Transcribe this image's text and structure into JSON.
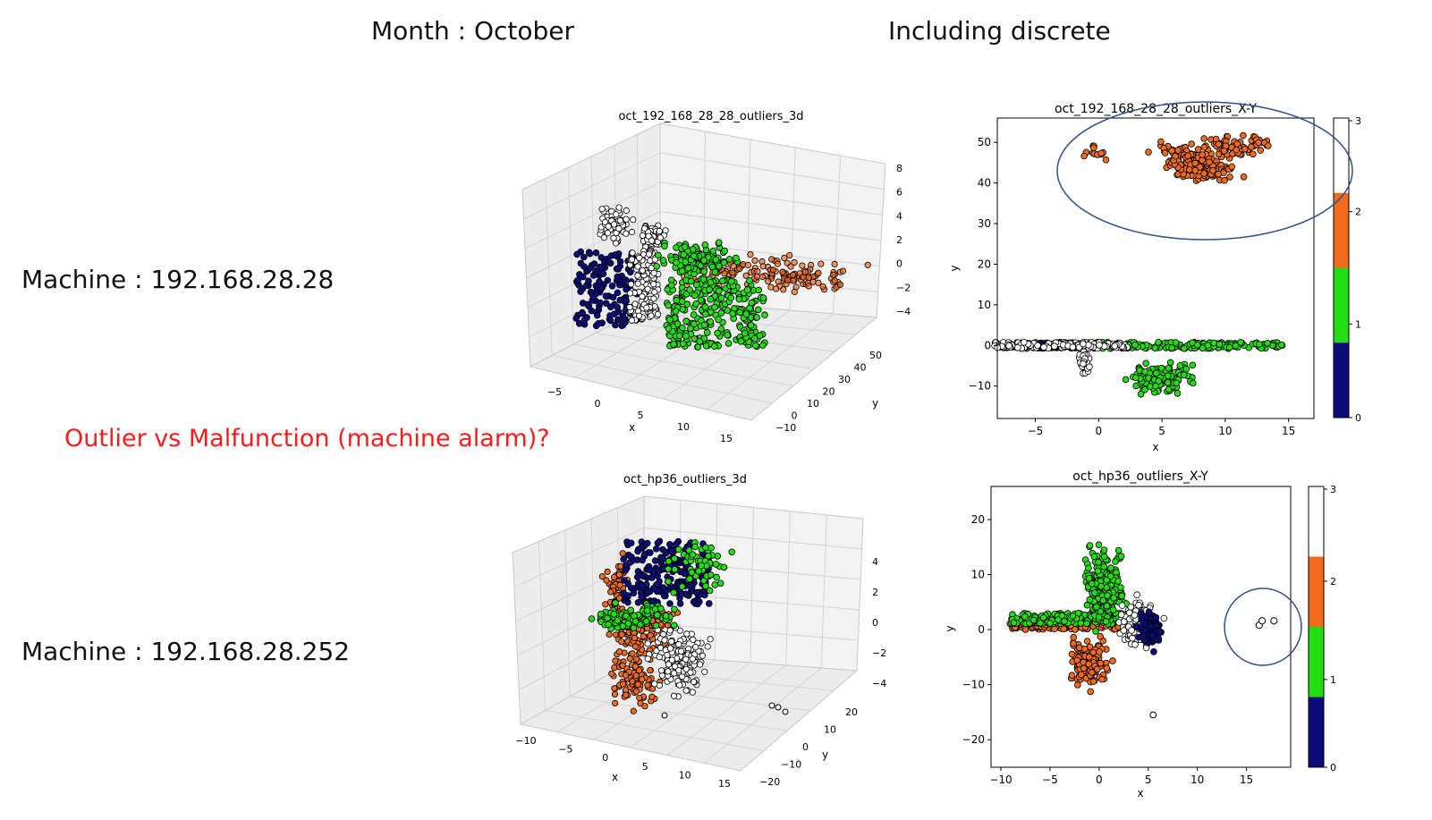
{
  "slide": {
    "month_label": "Month : October",
    "mode_label": "Including discrete",
    "machine1_label": "Machine : 192.168.28.28",
    "machine2_label": "Machine : 192.168.28.252",
    "question": "Outlier vs Malfunction (machine alarm)?"
  },
  "colors": {
    "cluster_0": "#0b0b7a",
    "cluster_1": "#22dd11",
    "cluster_2": "#f26b1d",
    "cluster_3": "#ffffff",
    "question_text": "#ff1a1a",
    "highlight_ellipse": "#2d4f8f"
  },
  "chart_data": [
    {
      "type": "scatter",
      "projection": "3d",
      "title": "oct_192_168_28_28_outliers_3d",
      "xlabel": "x",
      "ylabel": "y",
      "zlabel": "",
      "xticks": [
        "−5",
        "0",
        "5",
        "10",
        "15"
      ],
      "yticks": [
        "−10",
        "0",
        "10",
        "20",
        "30",
        "40",
        "50"
      ],
      "zticks": [
        "−4",
        "−2",
        "0",
        "2",
        "4",
        "6",
        "8"
      ],
      "xlim": [
        -7,
        16
      ],
      "ylim": [
        -12,
        55
      ],
      "zlim": [
        -5,
        9
      ],
      "series": [
        {
          "cluster": 0,
          "x": [
            -7,
            -1
          ],
          "y": [
            -2,
            2
          ],
          "z": [
            -4.5,
            0.5
          ]
        },
        {
          "cluster": 3,
          "x": [
            -2,
            3
          ],
          "y": [
            -5,
            8
          ],
          "z": [
            -4,
            5
          ]
        },
        {
          "cluster": 1,
          "x": [
            2,
            14
          ],
          "y": [
            -14,
            3
          ],
          "z": [
            -4.5,
            2.5
          ]
        },
        {
          "cluster": 2,
          "x": [
            3,
            15
          ],
          "y": [
            33,
            55
          ],
          "z": [
            -3,
            2
          ]
        }
      ]
    },
    {
      "type": "scatter",
      "title": "oct_192_168_28_28_outliers_X-Y",
      "xlabel": "x",
      "ylabel": "y",
      "xlim": [
        -8,
        17
      ],
      "ylim": [
        -18,
        56
      ],
      "xticks": [
        -5,
        0,
        5,
        10,
        15
      ],
      "yticks": [
        -10,
        0,
        10,
        20,
        30,
        40,
        50
      ],
      "colorbar": {
        "ticks": [
          0,
          1,
          2,
          3
        ],
        "colors": [
          "#0b0b7a",
          "#22dd11",
          "#f26b1d",
          "#ffffff"
        ]
      },
      "annotation": "ellipse around cluster 2 (upper group)"
    },
    {
      "type": "scatter",
      "projection": "3d",
      "title": "oct_hp36_outliers_3d",
      "xlabel": "x",
      "ylabel": "y",
      "zlabel": "",
      "xticks": [
        "−10",
        "−5",
        "0",
        "5",
        "10",
        "15"
      ],
      "yticks": [
        "−20",
        "−10",
        "0",
        "10",
        "20"
      ],
      "zticks": [
        "−4",
        "−2",
        "0",
        "2",
        "4"
      ],
      "xlim": [
        -11,
        19
      ],
      "ylim": [
        -23,
        24
      ],
      "zlim": [
        -5,
        5
      ],
      "series": [
        {
          "cluster": 0,
          "x": [
            0,
            8
          ],
          "y": [
            -3,
            4
          ],
          "z": [
            -1,
            4
          ]
        },
        {
          "cluster": 1,
          "x": [
            -9,
            6
          ],
          "y": [
            0,
            22
          ],
          "z": [
            -2,
            4
          ]
        },
        {
          "cluster": 2,
          "x": [
            -10,
            0
          ],
          "y": [
            -22,
            2
          ],
          "z": [
            -4,
            3
          ]
        },
        {
          "cluster": 3,
          "x": [
            0,
            18
          ],
          "y": [
            -15,
            14
          ],
          "z": [
            -4,
            2
          ]
        }
      ]
    },
    {
      "type": "scatter",
      "title": "oct_hp36_outliers_X-Y",
      "xlabel": "x",
      "ylabel": "y",
      "xlim": [
        -11,
        19.5
      ],
      "ylim": [
        -25,
        26
      ],
      "xticks": [
        -10,
        -5,
        0,
        5,
        10,
        15
      ],
      "yticks": [
        -20,
        -10,
        0,
        10,
        20
      ],
      "colorbar": {
        "ticks": [
          0,
          1,
          2,
          3
        ],
        "colors": [
          "#0b0b7a",
          "#22dd11",
          "#f26b1d",
          "#ffffff"
        ]
      },
      "outliers": [
        [
          16.3,
          0.8
        ],
        [
          16.6,
          1.5
        ],
        [
          17.8,
          1.6
        ]
      ],
      "annotation": "circle around isolated outliers near x≈17"
    }
  ]
}
